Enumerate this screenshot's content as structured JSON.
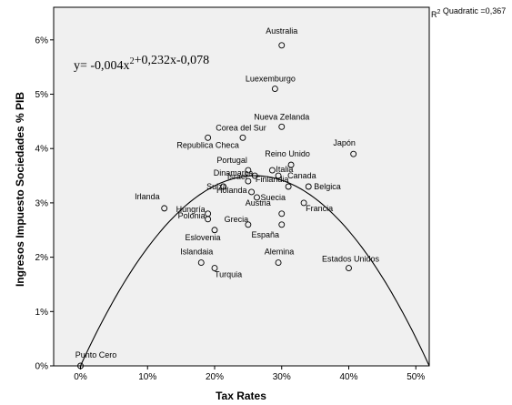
{
  "chart_data": {
    "type": "scatter",
    "title": "",
    "xlabel": "Tax Rates",
    "ylabel": "Ingresos Impuesto Sociedades % PIB",
    "xlim": [
      -0.04,
      0.52
    ],
    "ylim": [
      0.0,
      0.066
    ],
    "x_ticks": [
      {
        "value": 0.0,
        "label": "0%"
      },
      {
        "value": 0.1,
        "label": "10%"
      },
      {
        "value": 0.2,
        "label": "20%"
      },
      {
        "value": 0.3,
        "label": "30%"
      },
      {
        "value": 0.4,
        "label": "40%"
      },
      {
        "value": 0.5,
        "label": "50%"
      }
    ],
    "y_ticks": [
      {
        "value": 0.0,
        "label": "0%"
      },
      {
        "value": 0.01,
        "label": "1%"
      },
      {
        "value": 0.02,
        "label": "2%"
      },
      {
        "value": 0.03,
        "label": "3%"
      },
      {
        "value": 0.04,
        "label": "4%"
      },
      {
        "value": 0.05,
        "label": "5%"
      },
      {
        "value": 0.06,
        "label": "6%"
      }
    ],
    "grid": false,
    "legend": "none",
    "fit": {
      "type": "quadratic",
      "equation": "y= -0,004x²+0,232x-0,078",
      "r2_label": "R² Quadratic =0,367"
    },
    "points": [
      {
        "label": "Australia",
        "x": 0.3,
        "y": 0.059
      },
      {
        "label": "Luexemburgo",
        "x": 0.29,
        "y": 0.051
      },
      {
        "label": "Nueva Zelanda",
        "x": 0.3,
        "y": 0.044
      },
      {
        "label": "Corea del Sur",
        "x": 0.242,
        "y": 0.042
      },
      {
        "label": "Republica Checa",
        "x": 0.19,
        "y": 0.042
      },
      {
        "label": "Japón",
        "x": 0.407,
        "y": 0.039
      },
      {
        "label": "Portugal",
        "x": 0.25,
        "y": 0.036
      },
      {
        "label": "Reino Unido",
        "x": 0.314,
        "y": 0.037
      },
      {
        "label": "Italia",
        "x": 0.286,
        "y": 0.036
      },
      {
        "label": "Dinamarca",
        "x": 0.26,
        "y": 0.035
      },
      {
        "label": "Canada",
        "x": 0.295,
        "y": 0.035
      },
      {
        "label": "Israel",
        "x": 0.25,
        "y": 0.034
      },
      {
        "label": "Finlandia",
        "x": 0.31,
        "y": 0.033
      },
      {
        "label": "Suiza",
        "x": 0.213,
        "y": 0.033
      },
      {
        "label": "Belgica",
        "x": 0.34,
        "y": 0.033
      },
      {
        "label": "Holanda",
        "x": 0.255,
        "y": 0.032
      },
      {
        "label": "Suecia",
        "x": 0.263,
        "y": 0.031
      },
      {
        "label": "Irlanda",
        "x": 0.125,
        "y": 0.029
      },
      {
        "label": "Francia",
        "x": 0.333,
        "y": 0.03
      },
      {
        "label": "Hungría",
        "x": 0.19,
        "y": 0.028
      },
      {
        "label": "Austria",
        "x": 0.3,
        "y": 0.028
      },
      {
        "label": "Polonia",
        "x": 0.19,
        "y": 0.027
      },
      {
        "label": "Grecia",
        "x": 0.25,
        "y": 0.026
      },
      {
        "label": "Eslovenia",
        "x": 0.2,
        "y": 0.025
      },
      {
        "label": "España",
        "x": 0.3,
        "y": 0.026
      },
      {
        "label": "Islandaia",
        "x": 0.18,
        "y": 0.019
      },
      {
        "label": "Alemina",
        "x": 0.295,
        "y": 0.019
      },
      {
        "label": "Estados Unidos",
        "x": 0.4,
        "y": 0.018
      },
      {
        "label": "Turquia",
        "x": 0.2,
        "y": 0.018
      },
      {
        "label": "Punto Cero",
        "x": 0.0,
        "y": 0.0
      }
    ]
  }
}
